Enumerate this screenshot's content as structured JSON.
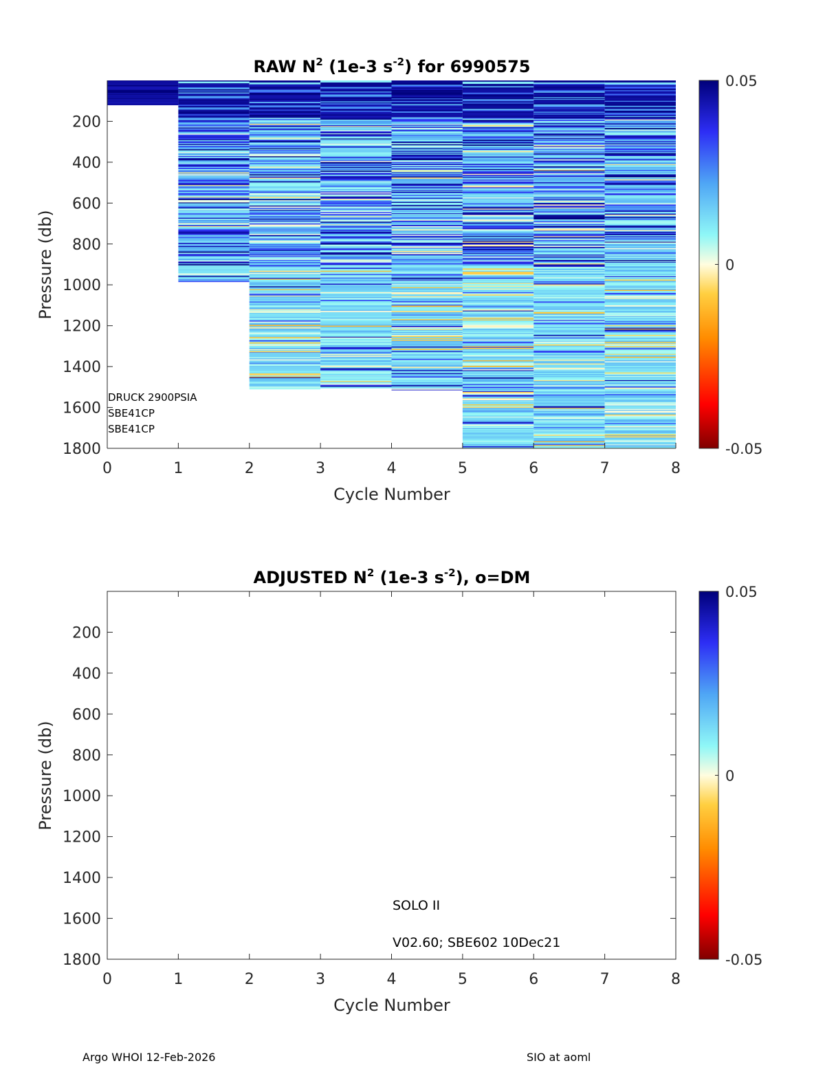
{
  "chart_data": [
    {
      "type": "heatmap",
      "title": {
        "prefix": "RAW N",
        "exp": "2",
        "mid": " (1e-3 s",
        "exp2": "-2",
        "suffix": ") for 6990575"
      },
      "xlabel": "Cycle Number",
      "ylabel": "Pressure (db)",
      "xlim": [
        0,
        8
      ],
      "ylim": [
        0,
        1800
      ],
      "y_reversed": true,
      "xticks": [
        "0",
        "1",
        "2",
        "3",
        "4",
        "5",
        "6",
        "7",
        "8"
      ],
      "yticks": [
        "200",
        "400",
        "600",
        "800",
        "1000",
        "1200",
        "1400",
        "1600",
        "1800"
      ],
      "colormap": "jet-reversed",
      "clim": [
        -0.05,
        0.05
      ],
      "colorbar_ticks": [
        "0.05",
        "0",
        "-0.05"
      ],
      "columns": [
        {
          "cycle": 0,
          "max_pressure": 120
        },
        {
          "cycle": 1,
          "max_pressure": 985
        },
        {
          "cycle": 2,
          "max_pressure": 1510
        },
        {
          "cycle": 3,
          "max_pressure": 1505
        },
        {
          "cycle": 4,
          "max_pressure": 1515
        },
        {
          "cycle": 5,
          "max_pressure": 1800
        },
        {
          "cycle": 6,
          "max_pressure": 1800
        },
        {
          "cycle": 7,
          "max_pressure": 1800
        }
      ],
      "sensor_notes": [
        "DRUCK 2900PSIA",
        "SBE41CP",
        "SBE41CP"
      ]
    },
    {
      "type": "heatmap",
      "title": {
        "prefix": "ADJUSTED N",
        "exp": "2",
        "mid": " (1e-3 s",
        "exp2": "-2",
        "suffix": "), o=DM"
      },
      "xlabel": "Cycle Number",
      "ylabel": "Pressure (db)",
      "xlim": [
        0,
        8
      ],
      "ylim": [
        0,
        1800
      ],
      "y_reversed": true,
      "xticks": [
        "0",
        "1",
        "2",
        "3",
        "4",
        "5",
        "6",
        "7",
        "8"
      ],
      "yticks": [
        "200",
        "400",
        "600",
        "800",
        "1000",
        "1200",
        "1400",
        "1600",
        "1800"
      ],
      "colormap": "jet-reversed",
      "clim": [
        -0.05,
        0.05
      ],
      "colorbar_ticks": [
        "0.05",
        "0",
        "-0.05"
      ],
      "columns": [],
      "annotations": [
        "SOLO II",
        "V02.60; SBE602 10Dec21"
      ]
    }
  ],
  "footer": {
    "left": "Argo WHOI 12-Feb-2026",
    "right": "SIO at aoml"
  }
}
